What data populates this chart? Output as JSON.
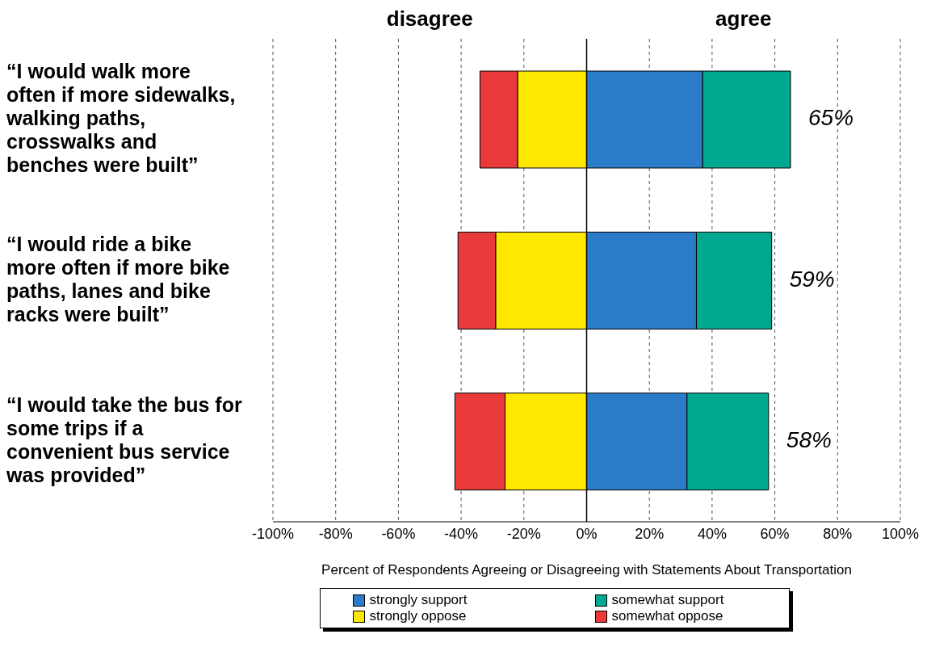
{
  "chart_data": {
    "type": "bar",
    "orientation": "horizontal",
    "stacked": true,
    "categories": [
      "“I would walk more often if more sidewalks, walking paths, crosswalks and benches were built”",
      "“I would ride a bike more often if more bike paths, lanes and bike racks were built”",
      "“I would take the bus for some trips if a convenient bus service was provided”"
    ],
    "series": [
      {
        "name": "strongly support",
        "color": "#2a7cc8",
        "values": [
          37,
          35,
          32
        ]
      },
      {
        "name": "somewhat support",
        "color": "#00a890",
        "values": [
          28,
          24,
          26
        ]
      },
      {
        "name": "strongly oppose",
        "color": "#ffe800",
        "values": [
          -22,
          -29,
          -26
        ]
      },
      {
        "name": "somewhat oppose",
        "color": "#e83a3a",
        "values": [
          -12,
          -12,
          -16
        ]
      }
    ],
    "xlim": [
      -100,
      100
    ],
    "xticks": [
      {
        "value": -100,
        "label": "-100%"
      },
      {
        "value": -80,
        "label": "-80%"
      },
      {
        "value": -60,
        "label": "-60%"
      },
      {
        "value": -40,
        "label": "-40%"
      },
      {
        "value": -20,
        "label": "-20%"
      },
      {
        "value": 0,
        "label": "0%"
      },
      {
        "value": 20,
        "label": "20%"
      },
      {
        "value": 40,
        "label": "40%"
      },
      {
        "value": 60,
        "label": "60%"
      },
      {
        "value": 80,
        "label": "80%"
      },
      {
        "value": 100,
        "label": "100%"
      }
    ],
    "xlabel": "Percent of Respondents Agreeing or Disagreeing  with Statements About Transportation",
    "annotations": [
      "disagree",
      "agree",
      {
        "text": "65%",
        "x": 65,
        "y": "“I would walk more often if more sidewalks, walking paths, crosswalks and benches were built”"
      },
      {
        "text": "59%",
        "x": 59,
        "y": "“I would ride a bike more often if more bike paths, lanes and bike racks were built”"
      },
      {
        "text": "58%",
        "x": 58,
        "y": "“I would take the bus for some trips if a convenient bus service was provided”"
      }
    ],
    "grid": "x",
    "legend": "bottom"
  }
}
